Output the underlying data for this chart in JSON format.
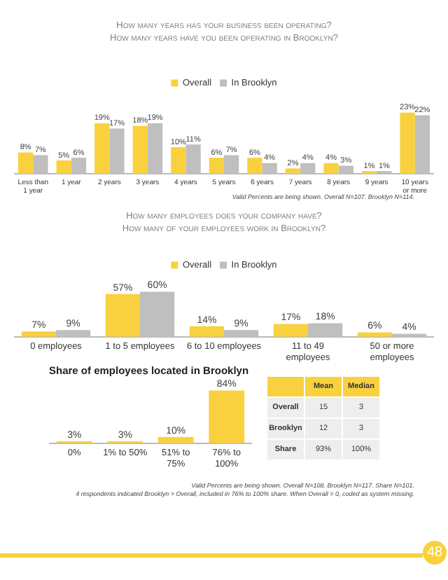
{
  "chart_data": [
    {
      "type": "bar",
      "title": "How many years has your business been operating?",
      "subtitle": "How many years have you been operating in Brooklyn?",
      "categories": [
        "Less than 1 year",
        "1 year",
        "2 years",
        "3 years",
        "4 years",
        "5 years",
        "6 years",
        "7 years",
        "8 years",
        "9 years",
        "10 years or more"
      ],
      "series": [
        {
          "name": "Overall",
          "color": "#f9d13e",
          "values": [
            8,
            5,
            19,
            18,
            10,
            6,
            6,
            2,
            4,
            1,
            23
          ],
          "value_labels": [
            "8%",
            "5%",
            "19%",
            "18%",
            "10%",
            "6%",
            "6%",
            "2%",
            "4%",
            "1%",
            "23%"
          ]
        },
        {
          "name": "In Brooklyn",
          "color": "#bfbfbf",
          "values": [
            7,
            6,
            17,
            19,
            11,
            7,
            4,
            4,
            3,
            1,
            22
          ],
          "value_labels": [
            "7%",
            "6%",
            "17%",
            "19%",
            "11%",
            "7%",
            "4%",
            "4%",
            "3%",
            "1%",
            "22%"
          ]
        }
      ],
      "legend": "top",
      "tick_labels": "x",
      "annotations": [
        "Valid Percents are being shown. Overall N=107. Brooklyn N=114."
      ]
    },
    {
      "type": "bar",
      "title": "How many employees does your company have?",
      "subtitle": "How many of your employees work in Brooklyn?",
      "categories": [
        "0 employees",
        "1 to 5 employees",
        "6 to 10 employees",
        "11 to 49 employees",
        "50 or more employees"
      ],
      "series": [
        {
          "name": "Overall",
          "color": "#f9d13e",
          "values": [
            7,
            57,
            14,
            17,
            6
          ],
          "value_labels": [
            "7%",
            "57%",
            "14%",
            "17%",
            "6%"
          ]
        },
        {
          "name": "In Brooklyn",
          "color": "#bfbfbf",
          "values": [
            9,
            60,
            9,
            18,
            4
          ],
          "value_labels": [
            "9%",
            "60%",
            "9%",
            "18%",
            "4%"
          ]
        }
      ],
      "legend": "top",
      "tick_labels": "x"
    },
    {
      "type": "bar",
      "title": "Share of employees located in Brooklyn",
      "categories": [
        "0%",
        "1% to 50%",
        "51% to 75%",
        "76% to 100%"
      ],
      "series": [
        {
          "color": "#f9d13e",
          "values": [
            3,
            3,
            10,
            84
          ],
          "value_labels": [
            "3%",
            "3%",
            "10%",
            "84%"
          ]
        }
      ],
      "tick_labels": "x",
      "annotations": [
        "Valid Percents are being shown. Overall N=108. Brooklyn N=117. Share N=101.",
        "4 respondents indicated Brooklyn > Overall, included in 76% to 100% share. When Overall = 0, coded as system missing."
      ]
    },
    {
      "type": "other",
      "categories": [
        "Mean",
        "Median"
      ],
      "y_categories": [
        "Overall",
        "Brooklyn",
        "Share"
      ],
      "cell_labels": [
        [
          "15",
          "3"
        ],
        [
          "12",
          "3"
        ],
        [
          "93%",
          "100%"
        ]
      ],
      "annotations": [
        "48"
      ]
    }
  ]
}
